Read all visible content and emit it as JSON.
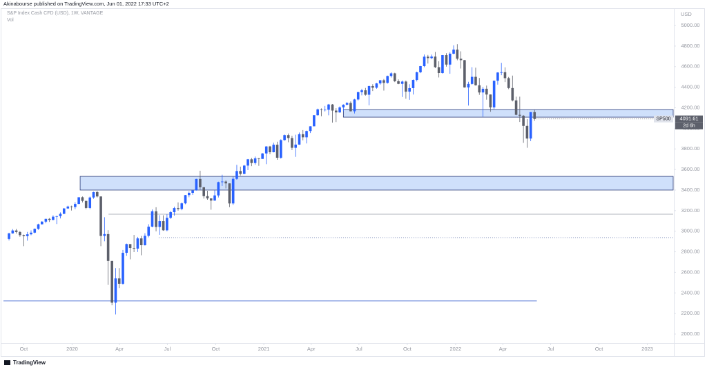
{
  "chart_data": {
    "type": "candlestick",
    "publisher": "Akinabourse published on TradingView.com, Jun 01, 2022 17:33 UTC+2",
    "title": "S&P Index Cash CFD (USD), 1W, VANTAGE",
    "subtitle": "Vol",
    "y_axis_label": "USD",
    "brand": "TradingView",
    "countdown": "2d 6h",
    "xlim": [
      2019.624,
      2023.135
    ],
    "xticks": [
      {
        "value": 2019.748,
        "label": "Oct"
      },
      {
        "value": 2020.0,
        "label": "2020"
      },
      {
        "value": 2020.247,
        "label": "Apr"
      },
      {
        "value": 2020.497,
        "label": "Jul"
      },
      {
        "value": 2020.749,
        "label": "Oct"
      },
      {
        "value": 2021.0,
        "label": "2021"
      },
      {
        "value": 2021.247,
        "label": "Apr"
      },
      {
        "value": 2021.496,
        "label": "Jul"
      },
      {
        "value": 2021.748,
        "label": "Oct"
      },
      {
        "value": 2022.0,
        "label": "2022"
      },
      {
        "value": 2022.247,
        "label": "Apr"
      },
      {
        "value": 2022.496,
        "label": "Jul"
      },
      {
        "value": 2022.748,
        "label": "Oct"
      },
      {
        "value": 2023.0,
        "label": "2023"
      }
    ],
    "ylim": [
      1913,
      5248
    ],
    "yticks": [
      {
        "value": 2000,
        "label": "2000.00"
      },
      {
        "value": 2200,
        "label": "2200.00"
      },
      {
        "value": 2400,
        "label": "2400.00"
      },
      {
        "value": 2600,
        "label": "2600.00"
      },
      {
        "value": 2800,
        "label": "2800.00"
      },
      {
        "value": 3000,
        "label": "3000.00"
      },
      {
        "value": 3200,
        "label": "3200.00"
      },
      {
        "value": 3400,
        "label": "3400.00"
      },
      {
        "value": 3600,
        "label": "3600.00"
      },
      {
        "value": 3800,
        "label": "3800.00"
      },
      {
        "value": 4000,
        "label": "4000.00"
      },
      {
        "value": 4200,
        "label": "4200.00"
      },
      {
        "value": 4400,
        "label": "4400.00"
      },
      {
        "value": 4600,
        "label": "4600.00"
      },
      {
        "value": 4800,
        "label": "4800.00"
      },
      {
        "value": 5000,
        "label": "5000.00"
      }
    ],
    "zones": [
      {
        "from": 4109,
        "to": 4183,
        "x_start": 2021.415,
        "color": "#cfe0fb",
        "border": "#2a3a78"
      },
      {
        "from": 3400,
        "to": 3533,
        "x_start": 2020.042,
        "color": "#cfe0fb",
        "border": "#2a3a78"
      }
    ],
    "levels": [
      {
        "value": 3165,
        "x_start": 2020.19,
        "color": "#b2b5be",
        "style": "solid"
      },
      {
        "value": 2938,
        "x_start": 2020.452,
        "color": "#7c8bb8",
        "style": "dotted"
      },
      {
        "value": 2322,
        "x_start": 2019.642,
        "x_end": 2022.424,
        "color": "#5b7bd8",
        "style": "solid"
      }
    ],
    "series": [
      {
        "name": "SP500",
        "up_color": "#2962ff",
        "down_color": "#5d606b",
        "x": [
          2019.671,
          2019.69,
          2019.709,
          2019.728,
          2019.748,
          2019.767,
          2019.786,
          2019.805,
          2019.824,
          2019.843,
          2019.863,
          2019.882,
          2019.901,
          2019.92,
          2019.939,
          2019.958,
          2019.978,
          2019.997,
          2020.016,
          2020.035,
          2020.054,
          2020.073,
          2020.093,
          2020.112,
          2020.131,
          2020.15,
          2020.169,
          2020.188,
          2020.208,
          2020.227,
          2020.246,
          2020.265,
          2020.284,
          2020.303,
          2020.323,
          2020.342,
          2020.361,
          2020.38,
          2020.399,
          2020.418,
          2020.438,
          2020.457,
          2020.476,
          2020.495,
          2020.514,
          2020.533,
          2020.553,
          2020.572,
          2020.591,
          2020.61,
          2020.629,
          2020.648,
          2020.668,
          2020.687,
          2020.706,
          2020.725,
          2020.744,
          2020.763,
          2020.783,
          2020.802,
          2020.821,
          2020.84,
          2020.859,
          2020.878,
          2020.898,
          2020.917,
          2020.936,
          2020.955,
          2020.974,
          2020.993,
          2021.013,
          2021.032,
          2021.051,
          2021.07,
          2021.089,
          2021.108,
          2021.128,
          2021.147,
          2021.166,
          2021.185,
          2021.204,
          2021.223,
          2021.243,
          2021.262,
          2021.281,
          2021.3,
          2021.319,
          2021.338,
          2021.358,
          2021.377,
          2021.396,
          2021.415,
          2021.434,
          2021.453,
          2021.473,
          2021.492,
          2021.511,
          2021.53,
          2021.549,
          2021.568,
          2021.588,
          2021.607,
          2021.626,
          2021.645,
          2021.664,
          2021.683,
          2021.702,
          2021.722,
          2021.741,
          2021.76,
          2021.779,
          2021.798,
          2021.817,
          2021.837,
          2021.856,
          2021.875,
          2021.894,
          2021.913,
          2021.932,
          2021.952,
          2021.971,
          2021.99,
          2022.009,
          2022.028,
          2022.047,
          2022.067,
          2022.086,
          2022.105,
          2022.124,
          2022.143,
          2022.162,
          2022.182,
          2022.201,
          2022.22,
          2022.239,
          2022.258,
          2022.277,
          2022.297,
          2022.316,
          2022.335,
          2022.354,
          2022.373,
          2022.392,
          2022.412
        ],
        "open": [
          2925,
          2979,
          3007,
          2992,
          2962,
          2952,
          2970,
          2986,
          3023,
          3067,
          3093,
          3120,
          3110,
          3141,
          3146,
          3169,
          3221,
          3240,
          3235,
          3265,
          3330,
          3295,
          3226,
          3328,
          3380,
          3338,
          2954,
          2972,
          2711,
          2305,
          2541,
          2489,
          2790,
          2875,
          2837,
          2831,
          2930,
          2864,
          2955,
          3044,
          3194,
          3041,
          3098,
          3009,
          3130,
          3185,
          3225,
          3216,
          3271,
          3351,
          3373,
          3397,
          3508,
          3427,
          3341,
          3319,
          3298,
          3348,
          3477,
          3483,
          3465,
          3270,
          3509,
          3585,
          3557,
          3638,
          3699,
          3663,
          3709,
          3703,
          3756,
          3824,
          3768,
          3841,
          3714,
          3886,
          3934,
          3906,
          3811,
          3842,
          3943,
          3913,
          3974,
          4020,
          4128,
          4185,
          4180,
          4181,
          4232,
          4173,
          4155,
          4204,
          4230,
          4247,
          4166,
          4281,
          4352,
          4370,
          4327,
          4411,
          4395,
          4437,
          4468,
          4442,
          4509,
          4535,
          4458,
          4433,
          4455,
          4357,
          4391,
          4471,
          4545,
          4605,
          4697,
          4683,
          4698,
          4595,
          4538,
          4712,
          4620,
          4726,
          4766,
          4677,
          4663,
          4398,
          4432,
          4501,
          4419,
          4349,
          4385,
          4329,
          4204,
          4463,
          4543,
          4546,
          4488,
          4392,
          4272,
          4132,
          4123,
          4024,
          3901,
          4158
        ],
        "high": [
          2985,
          3021,
          3022,
          3002,
          2968,
          2993,
          3008,
          3027,
          3073,
          3098,
          3121,
          3128,
          3154,
          3150,
          3183,
          3226,
          3248,
          3248,
          3282,
          3330,
          3338,
          3295,
          3337,
          3385,
          3393,
          3338,
          3136,
          3010,
          2711,
          2641,
          2641,
          2818,
          2880,
          2870,
          2964,
          2945,
          2954,
          2980,
          3068,
          3211,
          3233,
          3156,
          3154,
          3165,
          3197,
          3238,
          3280,
          3279,
          3353,
          3387,
          3399,
          3509,
          3588,
          3430,
          3393,
          3320,
          3397,
          3482,
          3549,
          3494,
          3465,
          3529,
          3645,
          3628,
          3644,
          3702,
          3713,
          3726,
          3712,
          3760,
          3827,
          3830,
          3861,
          3870,
          3894,
          3940,
          3950,
          3929,
          3938,
          3960,
          3983,
          3978,
          4021,
          4129,
          4192,
          4194,
          4218,
          4238,
          4237,
          4196,
          4213,
          4234,
          4255,
          4262,
          4287,
          4356,
          4385,
          4393,
          4415,
          4429,
          4442,
          4469,
          4480,
          4513,
          4545,
          4541,
          4476,
          4465,
          4465,
          4429,
          4475,
          4552,
          4608,
          4718,
          4714,
          4717,
          4743,
          4652,
          4713,
          4731,
          4740,
          4808,
          4818,
          4749,
          4665,
          4453,
          4595,
          4590,
          4490,
          4404,
          4416,
          4330,
          4465,
          4546,
          4637,
          4593,
          4500,
          4513,
          4308,
          4308,
          4130,
          4090,
          4158,
          4178
        ],
        "low": [
          2910,
          2975,
          2978,
          2946,
          2855,
          2908,
          2960,
          2980,
          3014,
          3066,
          3077,
          3090,
          3106,
          3070,
          3124,
          3166,
          3218,
          3201,
          3214,
          3263,
          3280,
          3214,
          3214,
          3315,
          3328,
          2855,
          2902,
          2478,
          2280,
          2191,
          2447,
          2480,
          2760,
          2727,
          2797,
          2798,
          2766,
          2860,
          2940,
          3038,
          2999,
          2965,
          3004,
          3000,
          3120,
          3152,
          3200,
          3204,
          3262,
          3330,
          3354,
          3395,
          3405,
          3317,
          3306,
          3209,
          3296,
          3328,
          3440,
          3416,
          3234,
          3255,
          3500,
          3542,
          3555,
          3594,
          3633,
          3647,
          3636,
          3703,
          3652,
          3749,
          3766,
          3694,
          3705,
          3880,
          3865,
          3789,
          3723,
          3840,
          3884,
          3853,
          3955,
          4020,
          4124,
          4118,
          4164,
          4127,
          4056,
          4061,
          4151,
          4167,
          4223,
          4165,
          4145,
          4271,
          4321,
          4318,
          4224,
          4363,
          4385,
          4425,
          4367,
          4435,
          4494,
          4450,
          4429,
          4305,
          4288,
          4278,
          4329,
          4456,
          4537,
          4595,
          4630,
          4672,
          4585,
          4495,
          4532,
          4600,
          4531,
          4720,
          4662,
          4582,
          4395,
          4222,
          4425,
          4415,
          4326,
          4114,
          4279,
          4161,
          4188,
          4425,
          4517,
          4450,
          4381,
          4262,
          4128,
          4062,
          3859,
          3811,
          3876,
          4073
        ],
        "close": [
          2979,
          3007,
          2992,
          2962,
          2952,
          2970,
          2986,
          3023,
          3067,
          3093,
          3120,
          3110,
          3141,
          3146,
          3169,
          3221,
          3240,
          3235,
          3265,
          3330,
          3295,
          3226,
          3328,
          3380,
          3338,
          2954,
          2972,
          2711,
          2305,
          2541,
          2489,
          2790,
          2875,
          2837,
          2831,
          2930,
          2864,
          2955,
          3044,
          3194,
          3041,
          3098,
          3009,
          3130,
          3185,
          3225,
          3216,
          3271,
          3351,
          3373,
          3397,
          3508,
          3427,
          3341,
          3319,
          3298,
          3348,
          3477,
          3483,
          3465,
          3270,
          3509,
          3585,
          3557,
          3638,
          3699,
          3663,
          3709,
          3703,
          3756,
          3824,
          3768,
          3841,
          3714,
          3886,
          3934,
          3906,
          3811,
          3842,
          3943,
          3913,
          3974,
          4020,
          4128,
          4185,
          4180,
          4181,
          4232,
          4173,
          4155,
          4204,
          4230,
          4247,
          4166,
          4281,
          4352,
          4370,
          4327,
          4411,
          4395,
          4437,
          4468,
          4442,
          4509,
          4535,
          4458,
          4433,
          4455,
          4357,
          4391,
          4471,
          4545,
          4605,
          4697,
          4683,
          4698,
          4595,
          4538,
          4712,
          4620,
          4726,
          4766,
          4677,
          4663,
          4398,
          4432,
          4501,
          4419,
          4349,
          4385,
          4329,
          4204,
          4463,
          4543,
          4546,
          4488,
          4392,
          4272,
          4132,
          4123,
          4024,
          3901,
          4158,
          4091.61
        ]
      }
    ]
  }
}
